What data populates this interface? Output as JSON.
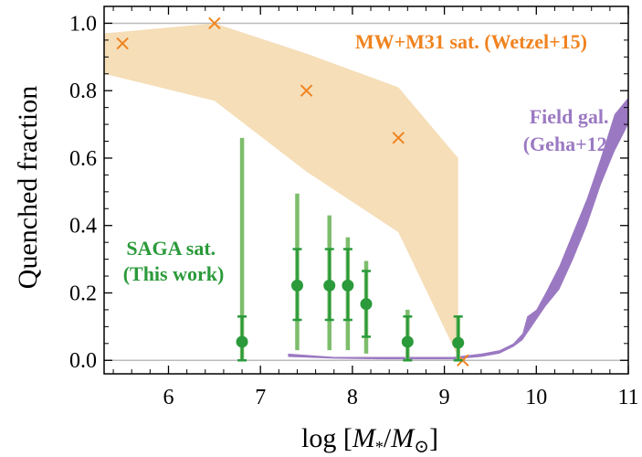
{
  "chart_data": {
    "type": "scatter",
    "xlabel": "log [M*/M⊙]",
    "xlabel_parts": {
      "prefix": "log [",
      "m1": "M",
      "sub1": "*",
      "slash": "/",
      "m2": "M",
      "sub2": "⊙",
      "suffix": "]"
    },
    "ylabel": "Quenched fraction",
    "xlim": [
      5.3,
      11.0
    ],
    "ylim": [
      -0.04,
      1.05
    ],
    "xticks": [
      6,
      7,
      8,
      9,
      10,
      11
    ],
    "xtick_labels": [
      "6",
      "7",
      "8",
      "9",
      "10",
      "11"
    ],
    "yticks": [
      0.0,
      0.2,
      0.4,
      0.6,
      0.8,
      1.0
    ],
    "ytick_labels": [
      "0.0",
      "0.2",
      "0.4",
      "0.6",
      "0.8",
      "1.0"
    ],
    "hlines": [
      0.0,
      1.0
    ],
    "annotations": {
      "mw": {
        "lines": [
          "MW+M31 sat. (Wetzel+15)"
        ],
        "color": "#f0831f"
      },
      "field": {
        "lines": [
          "Field gal.",
          "(Geha+12)"
        ],
        "color": "#9b79c2"
      },
      "saga": {
        "lines": [
          "SAGA sat.",
          "(This work)"
        ],
        "color": "#2a9a3a"
      }
    },
    "series": [
      {
        "kind": "band",
        "color": "#f5deb8",
        "x": [
          5.3,
          6.5,
          7.5,
          8.5,
          9.15
        ],
        "upper": [
          0.97,
          1.0,
          0.91,
          0.81,
          0.6
        ],
        "lower": [
          0.85,
          0.77,
          0.56,
          0.38,
          0.01
        ]
      },
      {
        "kind": "points",
        "marker": "x",
        "color": "#f0831f",
        "x": [
          5.5,
          6.5,
          7.5,
          8.5,
          9.2
        ],
        "y": [
          0.94,
          1.0,
          0.8,
          0.66,
          0.0
        ]
      },
      {
        "kind": "band",
        "color": "#9b79c2",
        "x": [
          7.3,
          7.8,
          8.3,
          8.8,
          9.1,
          9.4,
          9.6,
          9.75,
          9.85,
          9.9,
          10.0,
          10.1,
          10.25,
          10.4,
          10.55,
          10.7,
          10.85,
          11.0
        ],
        "upper": [
          0.02,
          0.01,
          0.01,
          0.01,
          0.01,
          0.02,
          0.03,
          0.05,
          0.08,
          0.13,
          0.15,
          0.2,
          0.28,
          0.38,
          0.48,
          0.6,
          0.73,
          0.78
        ],
        "lower": [
          0.01,
          0.005,
          0.003,
          0.003,
          0.003,
          0.01,
          0.02,
          0.04,
          0.06,
          0.08,
          0.12,
          0.16,
          0.21,
          0.3,
          0.4,
          0.52,
          0.62,
          0.7
        ]
      },
      {
        "kind": "errorbars",
        "color": "#2a9a3a",
        "light_color": "#7dbd6b",
        "x": [
          6.8,
          7.4,
          7.75,
          7.95,
          8.15,
          8.6,
          9.15
        ],
        "y": [
          0.055,
          0.222,
          0.222,
          0.222,
          0.167,
          0.055,
          0.052
        ],
        "inner_low": [
          0.0,
          0.12,
          0.12,
          0.12,
          0.07,
          0.0,
          0.0
        ],
        "inner_high": [
          0.13,
          0.33,
          0.33,
          0.33,
          0.265,
          0.13,
          0.13
        ],
        "outer_low": [
          0.0,
          0.03,
          0.03,
          0.03,
          0.02,
          0.0,
          0.0
        ],
        "outer_high": [
          0.66,
          0.495,
          0.43,
          0.365,
          0.295,
          0.15,
          0.13
        ]
      }
    ]
  }
}
